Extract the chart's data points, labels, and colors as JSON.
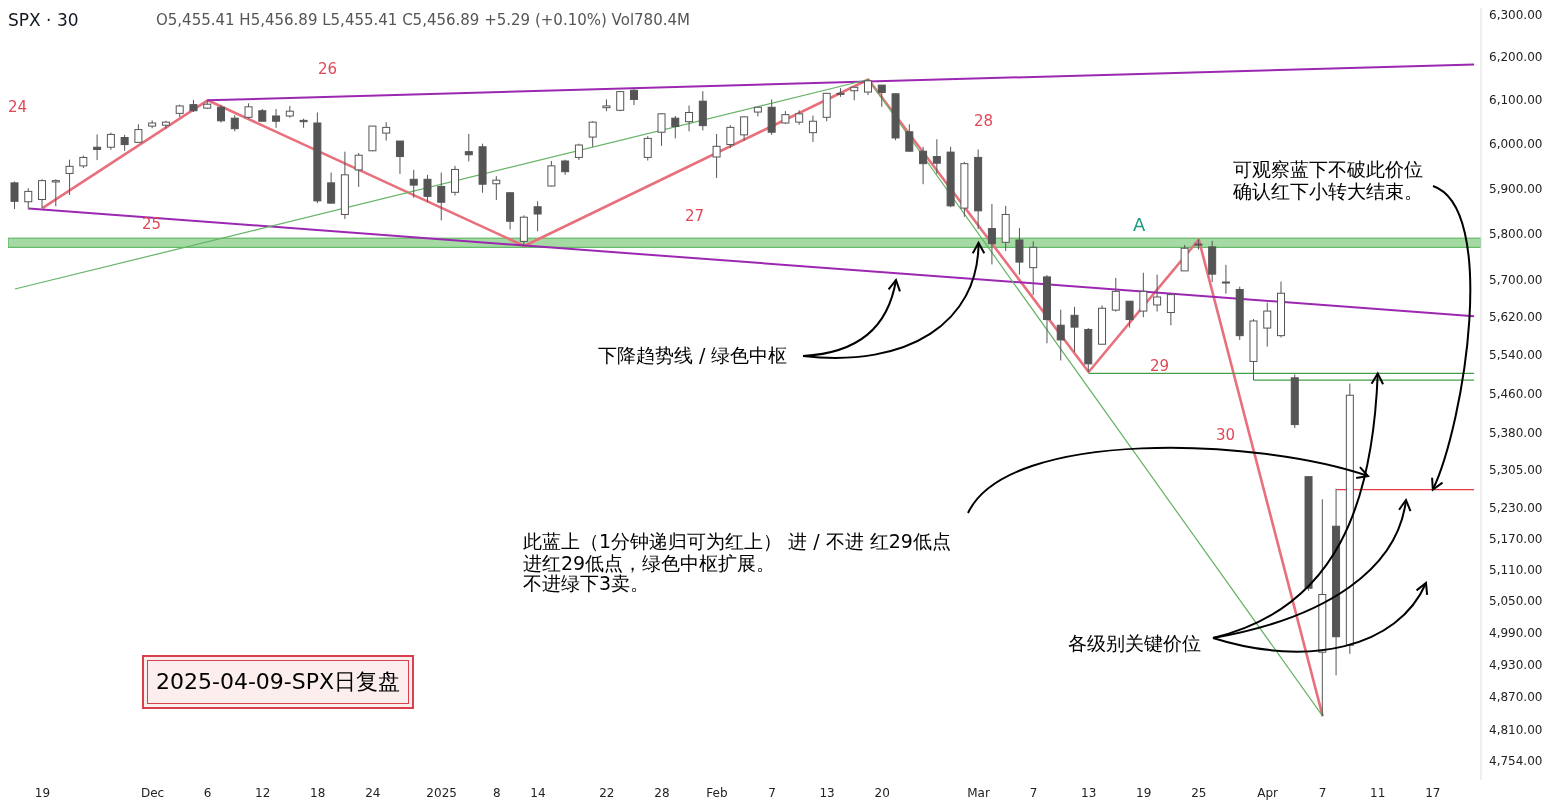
{
  "chart_data": {
    "type": "candlestick",
    "title": "SPX · 30",
    "subtitle": "O5,455.41 H5,456.89 L5,455.41 C5,456.89 +5.29 (+0.10%) Vol780.4M",
    "color": "#555555",
    "categories": [
      null,
      null,
      "19",
      null,
      null,
      null,
      null,
      null,
      null,
      null,
      "Dec",
      null,
      null,
      null,
      "6",
      null,
      null,
      null,
      "12",
      null,
      null,
      null,
      "18",
      null,
      null,
      null,
      "24",
      null,
      null,
      null,
      null,
      "2025",
      null,
      null,
      null,
      "8",
      null,
      null,
      "14",
      null,
      null,
      null,
      null,
      "22",
      null,
      null,
      null,
      "28",
      null,
      null,
      null,
      "Feb",
      null,
      null,
      null,
      "7",
      null,
      null,
      null,
      "13",
      null,
      null,
      null,
      "20",
      null,
      null,
      null,
      null,
      null,
      null,
      "Mar",
      null,
      null,
      null,
      "7",
      null,
      null,
      null,
      "13",
      null,
      null,
      null,
      "19",
      null,
      null,
      null,
      "25",
      null,
      null,
      null,
      null,
      "Apr",
      null,
      null,
      null,
      "7",
      null,
      null,
      null,
      "11",
      null,
      null,
      null,
      "17",
      null,
      null,
      null
    ],
    "ohlc": [
      [
        5912,
        5915,
        5854,
        5871
      ],
      [
        5870,
        5900,
        5853,
        5893
      ],
      [
        5875,
        5920,
        5856,
        5917
      ],
      [
        5914,
        5920,
        5860,
        5917
      ],
      [
        5933,
        5964,
        5885,
        5949
      ],
      [
        5950,
        5973,
        5945,
        5969
      ],
      [
        5992,
        6021,
        5963,
        5987
      ],
      [
        5992,
        6025,
        5986,
        6021
      ],
      [
        6014,
        6020,
        5984,
        5998
      ],
      [
        6003,
        6044,
        6003,
        6032
      ],
      [
        6040,
        6053,
        6035,
        6047
      ],
      [
        6042,
        6052,
        6034,
        6049
      ],
      [
        6069,
        6089,
        6061,
        6086
      ],
      [
        6089,
        6100,
        6072,
        6075
      ],
      [
        6081,
        6099,
        6079,
        6090
      ],
      [
        6083,
        6088,
        6048,
        6052
      ],
      [
        6058,
        6065,
        6028,
        6034
      ],
      [
        6060,
        6092,
        6057,
        6084
      ],
      [
        6075,
        6079,
        6051,
        6051
      ],
      [
        6063,
        6079,
        6036,
        6051
      ],
      [
        6063,
        6086,
        6059,
        6074
      ],
      [
        6053,
        6057,
        6036,
        6050
      ],
      [
        6047,
        6071,
        5867,
        5872
      ],
      [
        5912,
        5935,
        5866,
        5867
      ],
      [
        5842,
        5982,
        5832,
        5930
      ],
      [
        5941,
        5979,
        5903,
        5974
      ],
      [
        5984,
        6040,
        5983,
        6040
      ],
      [
        6024,
        6049,
        6007,
        6037
      ],
      [
        6006,
        6006,
        5932,
        5971
      ],
      [
        5920,
        5941,
        5879,
        5907
      ],
      [
        5920,
        5930,
        5869,
        5882
      ],
      [
        5904,
        5935,
        5829,
        5869
      ],
      [
        5891,
        5950,
        5884,
        5942
      ],
      [
        5982,
        6022,
        5960,
        5975
      ],
      [
        5993,
        6000,
        5890,
        5909
      ],
      [
        5910,
        5927,
        5874,
        5918
      ],
      [
        5890,
        5891,
        5809,
        5827
      ],
      [
        5783,
        5840,
        5773,
        5836
      ],
      [
        5859,
        5871,
        5805,
        5843
      ],
      [
        5905,
        5961,
        5904,
        5950
      ],
      [
        5961,
        5964,
        5930,
        5937
      ],
      [
        5969,
        6000,
        5963,
        5997
      ],
      [
        6015,
        6051,
        5993,
        6049
      ],
      [
        6082,
        6101,
        6074,
        6086
      ],
      [
        6076,
        6119,
        6074,
        6119
      ],
      [
        6122,
        6128,
        6088,
        6101
      ],
      [
        5969,
        6017,
        5962,
        6012
      ],
      [
        6026,
        6069,
        5995,
        6068
      ],
      [
        6058,
        6063,
        6012,
        6039
      ],
      [
        6050,
        6087,
        6028,
        6071
      ],
      [
        6097,
        6120,
        6030,
        6041
      ],
      [
        5970,
        6022,
        5923,
        5994
      ],
      [
        5998,
        6042,
        5990,
        6037
      ],
      [
        6020,
        6062,
        6007,
        6061
      ],
      [
        6072,
        6084,
        6062,
        6083
      ],
      [
        6083,
        6101,
        6020,
        6026
      ],
      [
        6047,
        6074,
        6045,
        6066
      ],
      [
        6049,
        6076,
        6043,
        6068
      ],
      [
        6025,
        6064,
        6004,
        6051
      ],
      [
        6060,
        6116,
        6051,
        6115
      ],
      [
        6115,
        6127,
        6107,
        6114
      ],
      [
        6121,
        6129,
        6099,
        6129
      ],
      [
        6118,
        6147,
        6111,
        6144
      ],
      [
        6134,
        6134,
        6084,
        6117
      ],
      [
        6114,
        6114,
        6008,
        6013
      ],
      [
        6027,
        6044,
        5983,
        5983
      ],
      [
        5983,
        5993,
        5909,
        5955
      ],
      [
        5971,
        6010,
        5932,
        5956
      ],
      [
        5981,
        5993,
        5858,
        5861
      ],
      [
        5856,
        5959,
        5837,
        5955
      ],
      [
        5969,
        5987,
        5810,
        5850
      ],
      [
        5811,
        5865,
        5733,
        5778
      ],
      [
        5781,
        5861,
        5762,
        5842
      ],
      [
        5786,
        5812,
        5711,
        5738
      ],
      [
        5726,
        5783,
        5667,
        5770
      ],
      [
        5706,
        5710,
        5565,
        5615
      ],
      [
        5603,
        5636,
        5529,
        5572
      ],
      [
        5624,
        5642,
        5547,
        5599
      ],
      [
        5594,
        5597,
        5505,
        5522
      ],
      [
        5563,
        5645,
        5563,
        5639
      ],
      [
        5635,
        5704,
        5632,
        5675
      ],
      [
        5654,
        5654,
        5598,
        5615
      ],
      [
        5633,
        5715,
        5620,
        5675
      ],
      [
        5646,
        5711,
        5632,
        5663
      ],
      [
        5630,
        5670,
        5603,
        5668
      ],
      [
        5719,
        5775,
        5719,
        5768
      ],
      [
        5776,
        5787,
        5765,
        5777
      ],
      [
        5771,
        5784,
        5695,
        5712
      ],
      [
        5695,
        5732,
        5670,
        5693
      ],
      [
        5679,
        5685,
        5572,
        5581
      ],
      [
        5527,
        5616,
        5488,
        5612
      ],
      [
        5597,
        5651,
        5558,
        5633
      ],
      [
        5581,
        5696,
        5577,
        5671
      ],
      [
        5493,
        5500,
        5390,
        5397
      ],
      [
        5292,
        5292,
        5069,
        5074
      ],
      [
        4953,
        5247,
        4835,
        5062
      ],
      [
        5194,
        5268,
        4910,
        4982
      ],
      [
        4966,
        5481,
        4950,
        5457
      ],
      null,
      null,
      null,
      null,
      null,
      null,
      null,
      null,
      null
    ],
    "series": [
      {
        "type": "line",
        "color": "#e8707c",
        "values": [
          null,
          null,
          5856,
          null,
          null,
          null,
          null,
          null,
          null,
          null,
          null,
          null,
          null,
          null,
          6099,
          null,
          null,
          null,
          null,
          null,
          null,
          null,
          null,
          null,
          null,
          null,
          null,
          null,
          null,
          null,
          null,
          null,
          null,
          null,
          null,
          null,
          null,
          5773,
          null,
          null,
          null,
          null,
          null,
          null,
          null,
          null,
          null,
          null,
          null,
          null,
          null,
          null,
          null,
          null,
          null,
          null,
          null,
          null,
          null,
          null,
          null,
          null,
          6147,
          null,
          null,
          null,
          null,
          null,
          null,
          null,
          null,
          null,
          null,
          null,
          null,
          null,
          null,
          null,
          5505,
          null,
          null,
          null,
          null,
          null,
          null,
          null,
          5787,
          null,
          null,
          null,
          null,
          null,
          null,
          null,
          null,
          4835,
          null,
          null,
          null,
          null,
          null,
          null,
          null,
          null,
          null,
          null,
          null
        ]
      },
      {
        "type": "line",
        "color": "#9c27b0",
        "values": [
          null,
          null,
          null,
          null,
          null,
          null,
          null,
          null,
          null,
          null,
          null,
          null,
          null,
          null,
          6099,
          null,
          null,
          null,
          null,
          null,
          null,
          null,
          null,
          null,
          null,
          null,
          null,
          null,
          null,
          null,
          null,
          null,
          null,
          null,
          null,
          null,
          null,
          null,
          null,
          null,
          null,
          null,
          null,
          null,
          null,
          null,
          null,
          null,
          null,
          null,
          null,
          null,
          null,
          null,
          null,
          null,
          null,
          null,
          null,
          null,
          null,
          null,
          null,
          null,
          null,
          null,
          null,
          null,
          null,
          null,
          null,
          null,
          null,
          null,
          null,
          null,
          null,
          null,
          null,
          null,
          null,
          null,
          null,
          null,
          null,
          null,
          null,
          null,
          null,
          null,
          null,
          null,
          null,
          null,
          null,
          null,
          null,
          null,
          null,
          null,
          null,
          null,
          null,
          null,
          null,
          null,
          6182
        ]
      },
      {
        "type": "line",
        "color": "#9c27b0",
        "values": [
          null,
          5855,
          null,
          null,
          null,
          null,
          null,
          null,
          null,
          null,
          null,
          null,
          null,
          null,
          null,
          null,
          null,
          null,
          null,
          null,
          null,
          null,
          null,
          null,
          null,
          null,
          null,
          null,
          null,
          null,
          null,
          null,
          null,
          null,
          null,
          null,
          null,
          null,
          null,
          null,
          null,
          null,
          null,
          null,
          null,
          null,
          null,
          null,
          null,
          null,
          null,
          null,
          null,
          null,
          null,
          null,
          null,
          null,
          null,
          null,
          null,
          null,
          null,
          null,
          null,
          null,
          null,
          null,
          null,
          null,
          null,
          null,
          null,
          null,
          null,
          null,
          null,
          null,
          null,
          null,
          null,
          null,
          null,
          null,
          null,
          null,
          null,
          null,
          null,
          null,
          null,
          null,
          null,
          null,
          null,
          null,
          null,
          null,
          null,
          null,
          null,
          null,
          null,
          null,
          null,
          null,
          5622
        ]
      },
      {
        "type": "line",
        "color": "#66b366",
        "values": [
          5680,
          null,
          null,
          null,
          null,
          null,
          null,
          null,
          null,
          null,
          null,
          null,
          null,
          null,
          null,
          null,
          null,
          null,
          null,
          null,
          null,
          null,
          null,
          null,
          null,
          null,
          null,
          null,
          null,
          null,
          null,
          null,
          null,
          null,
          null,
          null,
          null,
          null,
          null,
          null,
          null,
          null,
          null,
          null,
          null,
          null,
          null,
          null,
          null,
          null,
          null,
          null,
          null,
          null,
          null,
          null,
          null,
          null,
          null,
          null,
          null,
          null,
          6147,
          null,
          null,
          null,
          null,
          null,
          null,
          null,
          null,
          null,
          null,
          null,
          null,
          null,
          null,
          null,
          null,
          null,
          null,
          null,
          null,
          null,
          null,
          null,
          null,
          null,
          null,
          null,
          null,
          null,
          null,
          null,
          null,
          4835,
          null,
          null,
          null,
          null,
          null,
          null,
          null,
          null,
          null,
          null,
          null
        ]
      },
      {
        "type": "line",
        "color": "#43a047",
        "values": [
          null,
          null,
          null,
          null,
          null,
          null,
          null,
          null,
          null,
          null,
          null,
          null,
          null,
          null,
          null,
          null,
          null,
          null,
          null,
          null,
          null,
          null,
          null,
          null,
          null,
          null,
          null,
          null,
          null,
          null,
          null,
          null,
          null,
          null,
          null,
          null,
          null,
          null,
          null,
          null,
          null,
          null,
          null,
          null,
          null,
          null,
          null,
          null,
          null,
          null,
          null,
          null,
          null,
          null,
          null,
          null,
          null,
          null,
          null,
          null,
          null,
          null,
          null,
          null,
          null,
          null,
          null,
          null,
          null,
          null,
          null,
          null,
          null,
          null,
          null,
          null,
          null,
          null,
          5502,
          null,
          null,
          null,
          null,
          null,
          null,
          null,
          null,
          null,
          null,
          null,
          null,
          null,
          null,
          null,
          null,
          null,
          null,
          null,
          null,
          null,
          null,
          null,
          null,
          null,
          null,
          null,
          5502
        ]
      },
      {
        "type": "line",
        "color": "#43a047",
        "values": [
          null,
          null,
          null,
          null,
          null,
          null,
          null,
          null,
          null,
          null,
          null,
          null,
          null,
          null,
          null,
          null,
          null,
          null,
          null,
          null,
          null,
          null,
          null,
          null,
          null,
          null,
          null,
          null,
          null,
          null,
          null,
          null,
          null,
          null,
          null,
          null,
          null,
          null,
          null,
          null,
          null,
          null,
          null,
          null,
          null,
          null,
          null,
          null,
          null,
          null,
          null,
          null,
          null,
          null,
          null,
          null,
          null,
          null,
          null,
          null,
          null,
          null,
          null,
          null,
          null,
          null,
          null,
          null,
          null,
          null,
          null,
          null,
          null,
          null,
          null,
          null,
          null,
          null,
          null,
          null,
          null,
          null,
          null,
          null,
          null,
          null,
          null,
          null,
          null,
          null,
          5488,
          null,
          null,
          null,
          null,
          null,
          null,
          null,
          null,
          null,
          null,
          null,
          null,
          null,
          null,
          null,
          5488
        ]
      },
      {
        "type": "line",
        "color": "#e53945",
        "values": [
          null,
          null,
          null,
          null,
          null,
          null,
          null,
          null,
          null,
          null,
          null,
          null,
          null,
          null,
          null,
          null,
          null,
          null,
          null,
          null,
          null,
          null,
          null,
          null,
          null,
          null,
          null,
          null,
          null,
          null,
          null,
          null,
          null,
          null,
          null,
          null,
          null,
          null,
          null,
          null,
          null,
          null,
          null,
          null,
          null,
          null,
          null,
          null,
          null,
          null,
          null,
          null,
          null,
          null,
          null,
          null,
          null,
          null,
          null,
          null,
          null,
          null,
          null,
          null,
          null,
          null,
          null,
          null,
          null,
          null,
          null,
          null,
          null,
          null,
          null,
          null,
          null,
          null,
          null,
          null,
          null,
          null,
          null,
          null,
          null,
          null,
          null,
          null,
          null,
          null,
          null,
          null,
          null,
          null,
          null,
          null,
          5266,
          null,
          null,
          null,
          null,
          null,
          null,
          null,
          null,
          null,
          5266
        ]
      }
    ],
    "bands": [
      {
        "axis": "y",
        "from": 5770,
        "to": 5790,
        "color": "#8fd18f"
      }
    ],
    "log": "y",
    "ylim": [
      4720,
      6315
    ],
    "yticks": [
      {
        "value": 6300,
        "label": "6,300.00"
      },
      {
        "value": 6200,
        "label": "6,200.00"
      },
      {
        "value": 6100,
        "label": "6,100.00"
      },
      {
        "value": 6000,
        "label": "6,000.00"
      },
      {
        "value": 5900,
        "label": "5,900.00"
      },
      {
        "value": 5800,
        "label": "5,800.00"
      },
      {
        "value": 5700,
        "label": "5,700.00"
      },
      {
        "value": 5620,
        "label": "5,620.00"
      },
      {
        "value": 5540,
        "label": "5,540.00"
      },
      {
        "value": 5460,
        "label": "5,460.00"
      },
      {
        "value": 5380,
        "label": "5,380.00"
      },
      {
        "value": 5305,
        "label": "5,305.00"
      },
      {
        "value": 5230,
        "label": "5,230.00"
      },
      {
        "value": 5170,
        "label": "5,170.00"
      },
      {
        "value": 5110,
        "label": "5,110.00"
      },
      {
        "value": 5050,
        "label": "5,050.00"
      },
      {
        "value": 4990,
        "label": "4,990.00"
      },
      {
        "value": 4930,
        "label": "4,930.00"
      },
      {
        "value": 4870,
        "label": "4,870.00"
      },
      {
        "value": 4810,
        "label": "4,810.00"
      },
      {
        "value": 4754,
        "label": "4,754.00"
      }
    ],
    "annotations": [
      "24",
      "25",
      "26",
      "27",
      "28",
      "29",
      "30",
      "A",
      {
        "text": "下降趋势线 / 绿色中枢",
        "x": "Mar",
        "y": 5780
      },
      "此蓝上（1分钟递归可为红上） 进 / 不进 红29低点",
      "进红29低点，绿色中枢扩展。",
      "不进绿下3卖。",
      {
        "text": "各级别关键价位",
        "x": "11",
        "y": 5502
      },
      {
        "text": "可观察蓝下不破此价位",
        "x": "17",
        "y": 5266
      },
      "确认红下小转大结束。",
      "2025-04-09-SPX日复盘"
    ]
  }
}
